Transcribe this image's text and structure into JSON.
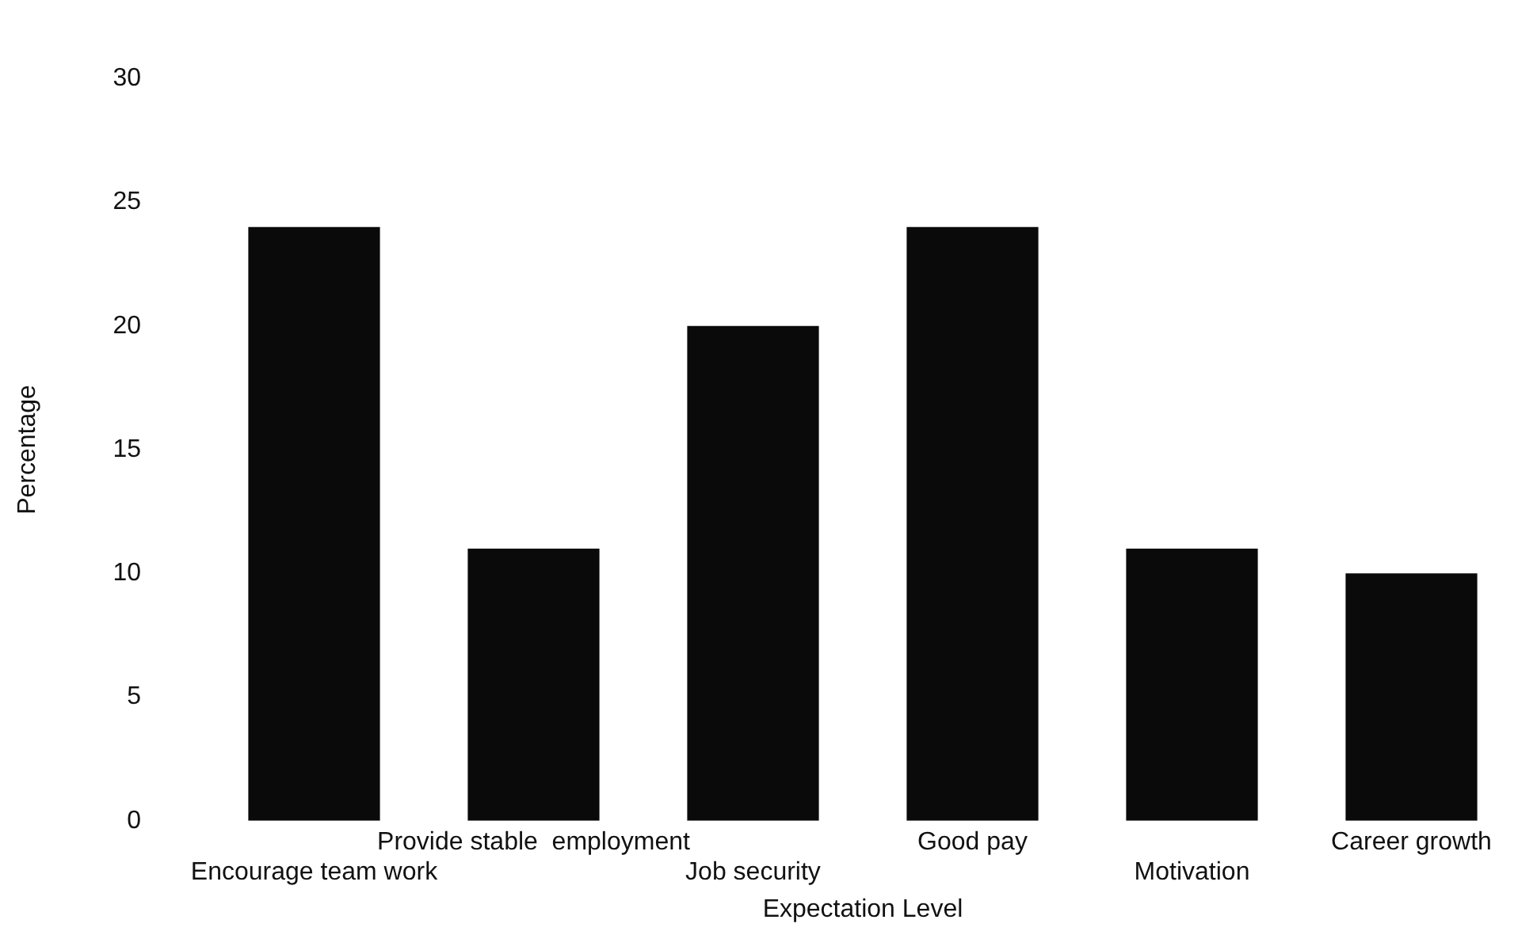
{
  "chart_data": {
    "type": "bar",
    "xlabel": "Expectation Level",
    "ylabel": "Percentage",
    "categories": [
      "Encourage team work",
      "Provide stable  employment",
      "Job security",
      "Good pay",
      "Motivation",
      "Career growth"
    ],
    "values": [
      24,
      11,
      20,
      24,
      11,
      10
    ],
    "color": "#0a0a0a",
    "ylim": [
      0,
      30
    ],
    "yticks": [
      0,
      5,
      10,
      15,
      20,
      25,
      30
    ],
    "grid": false,
    "legend": false
  }
}
